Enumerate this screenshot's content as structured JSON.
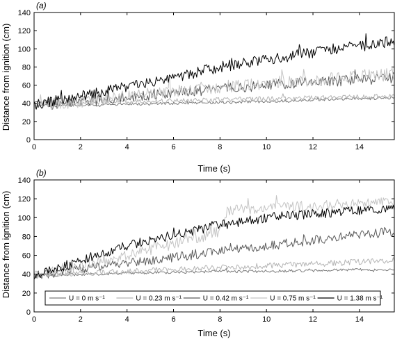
{
  "chart_data": [
    {
      "type": "line",
      "panel_label": "(a)",
      "xlabel": "Time (s)",
      "ylabel": "Distance from ignition (cm)",
      "xlim": [
        0,
        15.5
      ],
      "ylim": [
        0,
        140
      ],
      "xticks": [
        0,
        2,
        4,
        6,
        8,
        10,
        12,
        14
      ],
      "yticks": [
        0,
        20,
        40,
        60,
        80,
        100,
        120,
        140
      ],
      "grid": false,
      "series": [
        {
          "color": "#7a7a7a",
          "noise": 1.5,
          "x": [
            0,
            2,
            4,
            6,
            8,
            10,
            12,
            14,
            15.5
          ],
          "values": [
            37,
            38,
            39,
            40,
            41,
            42,
            44,
            45,
            46
          ]
        },
        {
          "color": "#b4b4b4",
          "noise": 2.5,
          "x": [
            0,
            2,
            4,
            6,
            8,
            10,
            12,
            14,
            15.5
          ],
          "values": [
            38,
            40,
            42,
            43,
            44,
            45,
            46,
            47,
            48
          ]
        },
        {
          "color": "#5a5a5a",
          "noise": 6,
          "x": [
            0,
            2,
            4,
            6,
            8,
            10,
            12,
            14,
            15.5
          ],
          "values": [
            38,
            42,
            47,
            52,
            56,
            60,
            63,
            66,
            68
          ]
        },
        {
          "color": "#c4c4c4",
          "noise": 7,
          "x": [
            0,
            2,
            4,
            6,
            8,
            10,
            12,
            14,
            15.5
          ],
          "values": [
            38,
            42,
            48,
            54,
            58,
            62,
            66,
            70,
            72
          ]
        },
        {
          "color": "#000000",
          "noise": 6,
          "x": [
            0,
            2,
            4,
            6,
            8,
            10,
            12,
            14,
            15.5
          ],
          "values": [
            38,
            48,
            58,
            68,
            80,
            88,
            96,
            105,
            108
          ]
        }
      ]
    },
    {
      "type": "line",
      "panel_label": "(b)",
      "xlabel": "Time (s)",
      "ylabel": "Distance from ignition (cm)",
      "xlim": [
        0,
        15.5
      ],
      "ylim": [
        0,
        140
      ],
      "xticks": [
        0,
        2,
        4,
        6,
        8,
        10,
        12,
        14
      ],
      "yticks": [
        0,
        20,
        40,
        60,
        80,
        100,
        120,
        140
      ],
      "grid": false,
      "legend_position": "bottom",
      "series": [
        {
          "name": "U = 0 m s⁻¹",
          "color": "#7a7a7a",
          "noise": 1.5,
          "x": [
            0,
            2,
            4,
            6,
            8,
            10,
            12,
            14,
            15.5
          ],
          "values": [
            38,
            40,
            41,
            42,
            43,
            43,
            44,
            45,
            45
          ]
        },
        {
          "name": "U = 0.23 m s⁻¹",
          "color": "#b4b4b4",
          "noise": 3,
          "x": [
            0,
            2,
            4,
            6,
            8,
            10,
            12,
            14,
            15.5
          ],
          "values": [
            38,
            41,
            43,
            45,
            47,
            49,
            51,
            53,
            55
          ]
        },
        {
          "name": "U = 0.42 m s⁻¹",
          "color": "#5a5a5a",
          "noise": 5,
          "x": [
            0,
            2,
            4,
            6,
            8,
            10,
            12,
            14,
            15.5
          ],
          "values": [
            38,
            46,
            52,
            58,
            64,
            70,
            76,
            82,
            86
          ]
        },
        {
          "name": "U = 0.75 m s⁻¹",
          "color": "#c4c4c4",
          "noise": 6,
          "x": [
            0,
            2,
            4,
            6,
            8,
            8.3,
            10,
            12,
            14,
            15.5
          ],
          "values": [
            38,
            50,
            60,
            72,
            85,
            108,
            110,
            112,
            115,
            118
          ]
        },
        {
          "name": "U = 1.38 m s⁻¹",
          "color": "#000000",
          "noise": 5,
          "x": [
            0,
            2,
            4,
            6,
            8,
            10,
            12,
            14,
            15.5
          ],
          "values": [
            38,
            55,
            70,
            82,
            92,
            100,
            104,
            107,
            109
          ]
        }
      ]
    }
  ]
}
